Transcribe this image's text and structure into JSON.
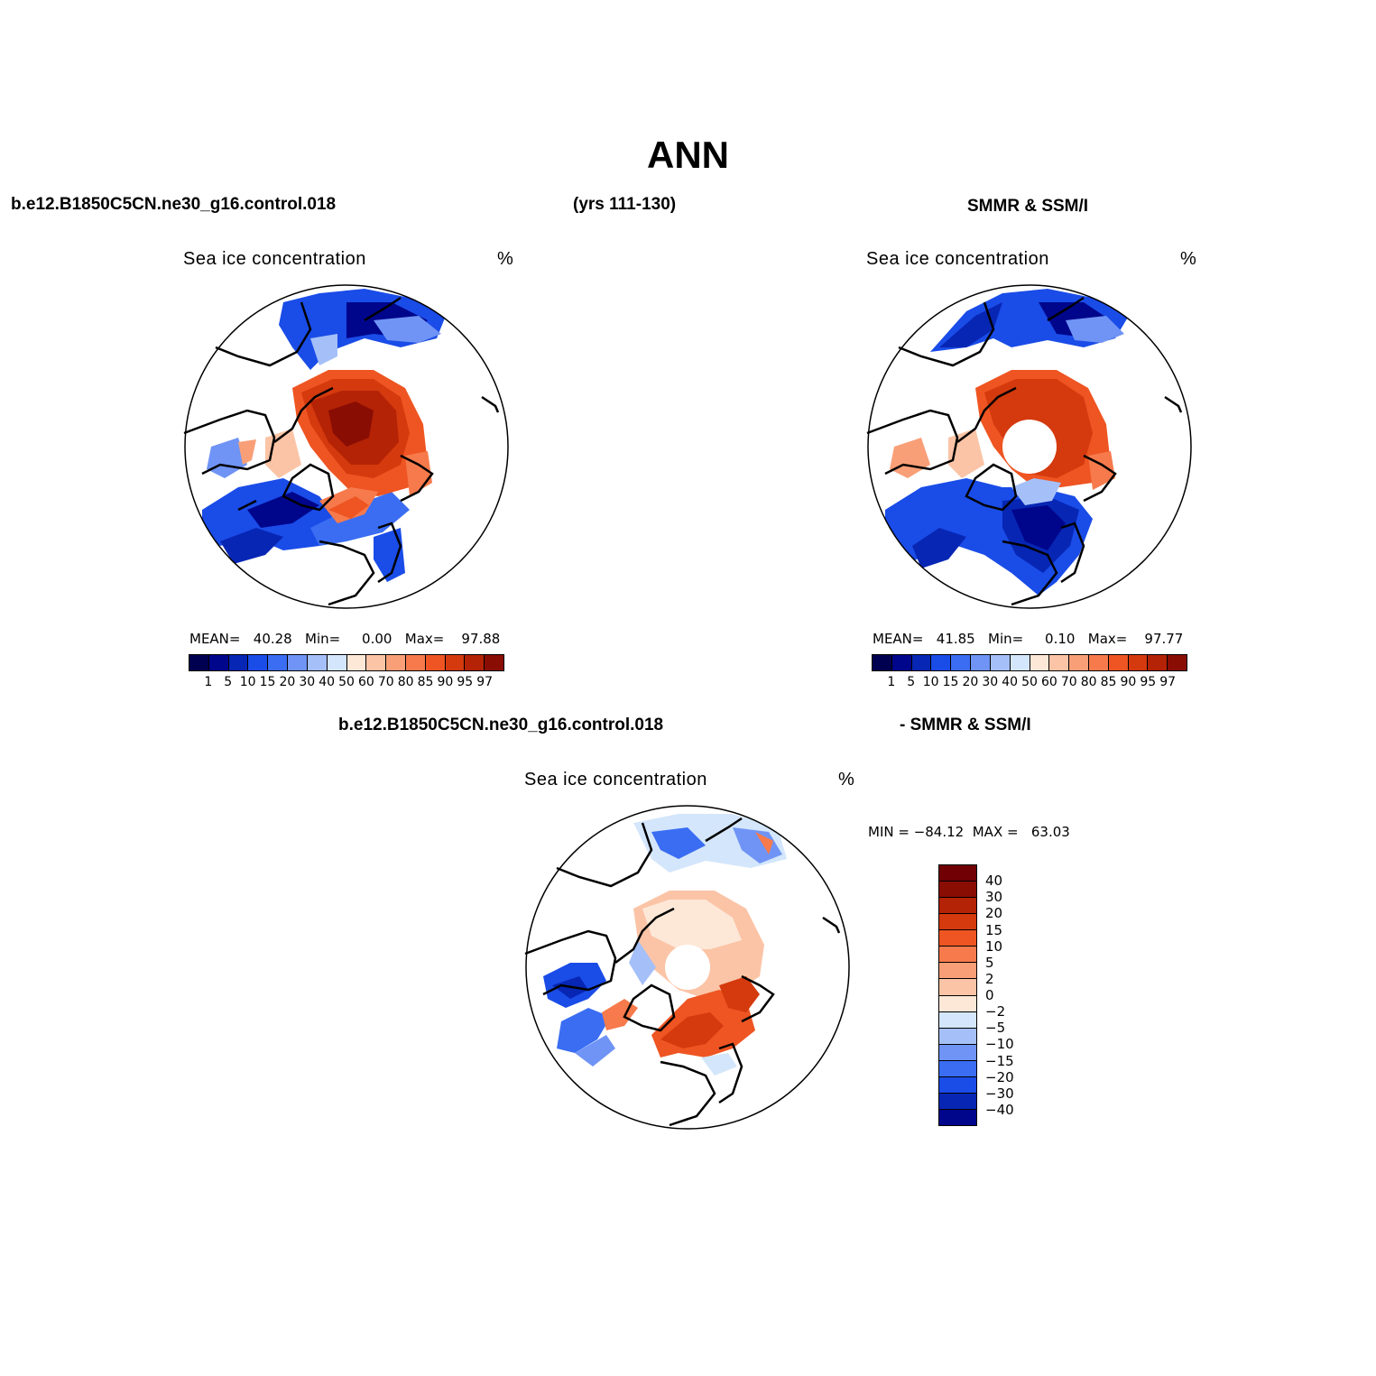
{
  "title": "ANN",
  "header": {
    "case_name": "b.e12.B1850C5CN.ne30_g16.control.018",
    "years": "(yrs 111-130)",
    "obs_name": "SMMR & SSM/I",
    "diff_left": "b.e12.B1850C5CN.ne30_g16.control.018",
    "diff_right": "- SMMR & SSM/I"
  },
  "panels": {
    "model": {
      "title": "Sea ice concentration",
      "units": "%",
      "stats": "MEAN=   40.28   Min=     0.00   Max=    97.88"
    },
    "obs": {
      "title": "Sea ice concentration",
      "units": "%",
      "stats": "MEAN=   41.85   Min=     0.10   Max=    97.77"
    },
    "diff": {
      "title": "Sea ice concentration",
      "units": "%",
      "stats": "MIN = −84.12  MAX =   63.03"
    }
  },
  "colorbar": {
    "labels": [
      "1",
      "5",
      "10",
      "15",
      "20",
      "30",
      "40",
      "50",
      "60",
      "70",
      "80",
      "85",
      "90",
      "95",
      "97"
    ],
    "colors": [
      "#00068c",
      "#0726b4",
      "#1a4ce8",
      "#3a6df2",
      "#6f94f5",
      "#a5c0f8",
      "#d4e6fb",
      "#fde8d8",
      "#fbc4a6",
      "#f99f78",
      "#f77a4c",
      "#ee5522",
      "#d43a0e",
      "#b42305",
      "#8a0d04"
    ]
  },
  "diff_colorbar": {
    "labels": [
      "40",
      "30",
      "20",
      "15",
      "10",
      "5",
      "2",
      "0",
      "−2",
      "−5",
      "−10",
      "−15",
      "−20",
      "−30",
      "−40"
    ],
    "colors": [
      "#8a0d04",
      "#b42305",
      "#d43a0e",
      "#ee5522",
      "#f77a4c",
      "#f99f78",
      "#fbc4a6",
      "#fde8d8",
      "#d4e6fb",
      "#a5c0f8",
      "#6f94f5",
      "#3a6df2",
      "#1a4ce8",
      "#0726b4",
      "#00068c"
    ]
  }
}
